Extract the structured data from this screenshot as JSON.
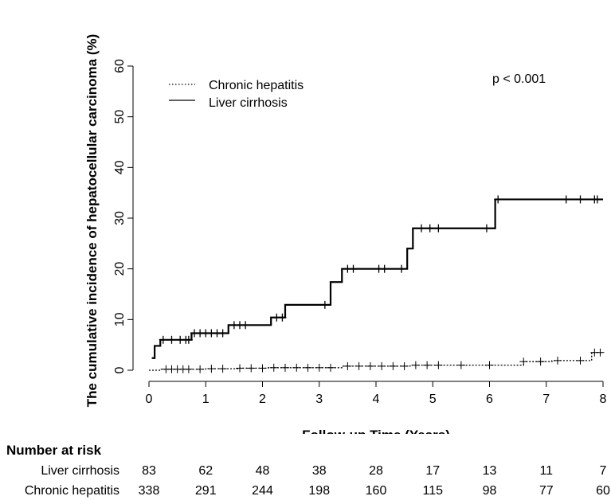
{
  "chart_data": {
    "type": "line",
    "title": "",
    "xlabel": "Follow-up Time (Years)",
    "ylabel": "The cumulative incidence of hepatocellular carcinoma (%)",
    "xlim": [
      0,
      8
    ],
    "ylim": [
      0,
      60
    ],
    "xticks": [
      "0",
      "1",
      "2",
      "3",
      "4",
      "5",
      "6",
      "7",
      "8"
    ],
    "yticks": [
      "0",
      "10",
      "20",
      "30",
      "40",
      "50",
      "60"
    ],
    "grid": false,
    "legend_position": "top-left",
    "annotation": "p < 0.001",
    "series": [
      {
        "name": "Chronic hepatitis",
        "style": "dotted",
        "steps": [
          [
            0,
            0
          ],
          [
            0.2,
            0.2
          ],
          [
            1.0,
            0.3
          ],
          [
            1.6,
            0.4
          ],
          [
            2.1,
            0.5
          ],
          [
            3.4,
            0.8
          ],
          [
            4.6,
            1.0
          ],
          [
            6.6,
            1.7
          ],
          [
            7.1,
            1.9
          ],
          [
            7.8,
            3.5
          ],
          [
            8,
            3.5
          ]
        ],
        "censor_times": [
          0.3,
          0.4,
          0.5,
          0.6,
          0.7,
          0.9,
          1.1,
          1.3,
          1.6,
          1.8,
          2.0,
          2.2,
          2.4,
          2.6,
          2.8,
          3.0,
          3.2,
          3.5,
          3.7,
          3.9,
          4.1,
          4.3,
          4.5,
          4.7,
          4.9,
          5.1,
          5.5,
          6.0,
          6.6,
          6.9,
          7.2,
          7.6,
          7.85,
          7.95
        ]
      },
      {
        "name": "Liver cirrhosis",
        "style": "solid",
        "steps": [
          [
            0.05,
            2.4
          ],
          [
            0.1,
            4.8
          ],
          [
            0.2,
            6.0
          ],
          [
            0.75,
            7.3
          ],
          [
            1.4,
            8.9
          ],
          [
            2.15,
            10.4
          ],
          [
            2.4,
            12.9
          ],
          [
            3.2,
            17.4
          ],
          [
            3.4,
            20.0
          ],
          [
            4.55,
            24.0
          ],
          [
            4.65,
            28.0
          ],
          [
            6.1,
            33.7
          ],
          [
            8,
            33.7
          ]
        ],
        "censor_times": [
          0.25,
          0.4,
          0.55,
          0.65,
          0.7,
          0.8,
          0.9,
          1.0,
          1.1,
          1.2,
          1.3,
          1.5,
          1.6,
          1.7,
          2.25,
          2.35,
          3.1,
          3.5,
          3.6,
          4.05,
          4.15,
          4.45,
          4.8,
          4.95,
          5.1,
          5.95,
          6.15,
          7.35,
          7.6,
          7.85,
          7.9
        ]
      }
    ]
  },
  "risk_table": {
    "title": "Number at risk",
    "rows": [
      {
        "label": "Liver cirrhosis",
        "values": [
          "83",
          "62",
          "48",
          "38",
          "28",
          "17",
          "13",
          "11",
          "7"
        ]
      },
      {
        "label": "Chronic hepatitis",
        "values": [
          "338",
          "291",
          "244",
          "198",
          "160",
          "115",
          "98",
          "77",
          "60"
        ]
      }
    ]
  }
}
